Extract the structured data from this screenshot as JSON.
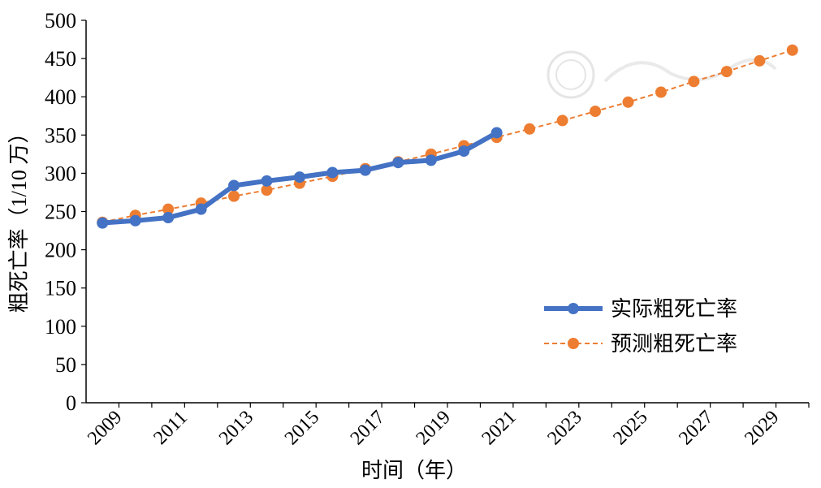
{
  "chart_data": {
    "type": "line",
    "xlabel": "时间（年）",
    "ylabel": "粗死亡率（1/10 万）",
    "ylim": [
      0,
      500
    ],
    "yticks": [
      0,
      50,
      100,
      150,
      200,
      250,
      300,
      350,
      400,
      450,
      500
    ],
    "categories": [
      "2009",
      "2010",
      "2011",
      "2012",
      "2013",
      "2014",
      "2015",
      "2016",
      "2017",
      "2018",
      "2019",
      "2020",
      "2021",
      "2022",
      "2023",
      "2024",
      "2025",
      "2026",
      "2027",
      "2028",
      "2029",
      "2030"
    ],
    "xtick_labels": [
      "2009",
      "2011",
      "2013",
      "2015",
      "2017",
      "2019",
      "2021",
      "2023",
      "2025",
      "2027",
      "2029"
    ],
    "grid": false,
    "legend_position": "lower-right",
    "series": [
      {
        "name": "实际粗死亡率",
        "color": "#4472C4",
        "style": "solid",
        "values": [
          235,
          238,
          242,
          253,
          284,
          290,
          295,
          301,
          304,
          314,
          317,
          329,
          353,
          null,
          null,
          null,
          null,
          null,
          null,
          null,
          null,
          null
        ]
      },
      {
        "name": "预测粗死亡率",
        "color": "#ED7D31",
        "style": "dashed",
        "values": [
          236,
          245,
          253,
          261,
          270,
          278,
          287,
          296,
          306,
          315,
          325,
          336,
          347,
          358,
          369,
          381,
          393,
          406,
          420,
          433,
          447,
          461
        ]
      }
    ]
  }
}
